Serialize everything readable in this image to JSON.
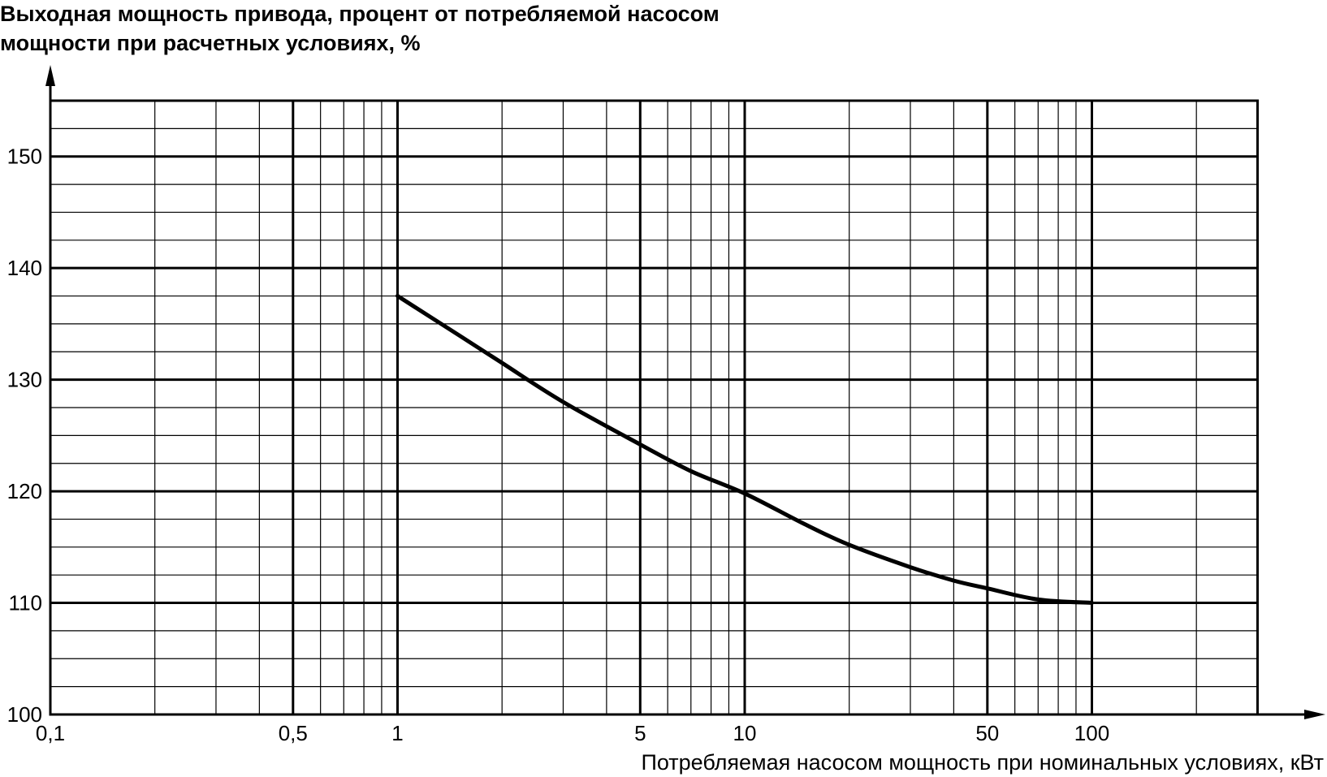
{
  "chart_data": {
    "type": "line",
    "ylabel_lines": [
      "Выходная мощность привода, процент от потребляемой насосом",
      "мощности при расчетных условиях, %"
    ],
    "xlabel": "Потребляемая насосом мощность при номинальных условиях, кВт",
    "x_scale": "log",
    "xlim": [
      0.1,
      300
    ],
    "ylim": [
      100,
      155
    ],
    "x_ticks": [
      {
        "value": 0.1,
        "label": "0,1"
      },
      {
        "value": 0.5,
        "label": "0,5"
      },
      {
        "value": 1,
        "label": "1"
      },
      {
        "value": 5,
        "label": "5"
      },
      {
        "value": 10,
        "label": "10"
      },
      {
        "value": 50,
        "label": "50"
      },
      {
        "value": 100,
        "label": "100"
      }
    ],
    "y_ticks": [
      {
        "value": 100,
        "label": "100"
      },
      {
        "value": 110,
        "label": "110"
      },
      {
        "value": 120,
        "label": "120"
      },
      {
        "value": 130,
        "label": "130"
      },
      {
        "value": 140,
        "label": "140"
      },
      {
        "value": 150,
        "label": "150"
      }
    ],
    "grid": true,
    "series": [
      {
        "x": [
          1,
          1.5,
          2,
          3,
          5,
          7,
          10,
          15,
          20,
          30,
          40,
          50,
          70,
          100
        ],
        "y": [
          137.5,
          134,
          131.5,
          128,
          124.2,
          121.8,
          119.8,
          117,
          115.2,
          113.2,
          112,
          111.3,
          110.3,
          110
        ]
      }
    ]
  }
}
